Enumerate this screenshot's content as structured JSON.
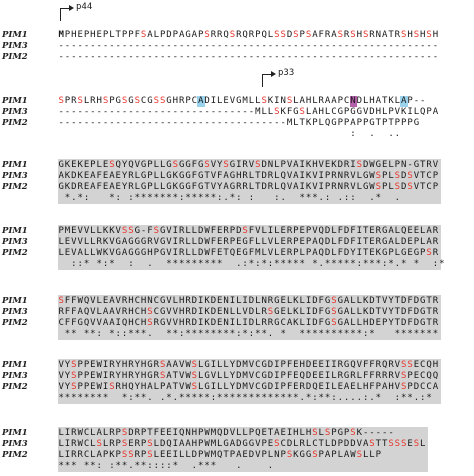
{
  "colors": {
    "red": "#e8352b",
    "blue": "#2e5cb8",
    "shade": "#d3d3d3",
    "hl_blue": "#79c4e6",
    "hl_purple": "#9b2b8f",
    "hl_green": "#2a7a3a",
    "hl_yellow": "#f2e94e",
    "hl_salmon": "#e0a090"
  },
  "markers": {
    "p44": "p44",
    "p33": "p33"
  },
  "blocks": [
    {
      "rows": [
        {
          "name": "PIM1",
          "seq": "MPHEPHEPLTPPFSALPDPAGAPSRRQSRQRPQLSSDSPSAFRASRSHSRNATRSHSHSH"
        },
        {
          "name": "PIM3",
          "seq": "------------------------------------------------------------"
        },
        {
          "name": "PIM2",
          "seq": "------------------------------------------------------------"
        }
      ],
      "cons": "",
      "shaded": false
    },
    {
      "rows": [
        {
          "name": "PIM1",
          "seq": "SPRSLRHSPGSGSCGSSGHRPCADILEVGMLLSKINSLAHLRAAPCNDLHATKLAP--"
        },
        {
          "name": "PIM3",
          "seq": "-------------------------------MLLSKFGSLAHLCGPGGVDHLPVKILQPA"
        },
        {
          "name": "PIM2",
          "seq": "------------------------------------MLTKPLQGPPAPPGTPTPPPG"
        }
      ],
      "cons": "                                              :  .  ..      ",
      "shaded": false
    },
    {
      "rows": [
        {
          "name": "PIM1",
          "seq": "GKEKEPLESQYQVGPLLGSGGFGSVYSGIRVSDNLPVAIKHVEKDRISDWGELPN-GTRV"
        },
        {
          "name": "PIM3",
          "seq": "AKDKEAFEAEYRLGPLLGKGGFGTVFAGHRLTDRLQVAIKVIPRNRVLGWSPLSDSVTCP"
        },
        {
          "name": "PIM2",
          "seq": "GKDREAFEAEYRLGPLLGKGGFGTVYAGRRLTDRLQVAIKVIPRNRVLGWSPLSDSVTCP"
        }
      ],
      "cons": " *.*:   *: :*******:*****:.*: :   :.  ***.: .::  .*  .     ",
      "shaded": true
    },
    {
      "rows": [
        {
          "name": "PIM1",
          "seq": "PMEVVLLKKVSSG-FSGVIRLLDWFERPDSFVLILERPEPVQDLFDFITERGALQEELAR"
        },
        {
          "name": "PIM3",
          "seq": "LEVVLLRKVGAGGGRVGVIRLLDWFERPEGFLLVLERPEPAQDLFDFITERGALDEPLAR"
        },
        {
          "name": "PIM2",
          "seq": "LEVALLWKVGAGGGHPGVIRLLDWFETQEGFMLVLERPLPAQDLFDYITEKGPLGEGPSR"
        }
      ],
      "cons": "  ::* *:*  :  .  *********  .:*:*:***** *.*****:***:*.* *  :*",
      "shaded": true
    },
    {
      "rows": [
        {
          "name": "PIM1",
          "seq": "SFFWQVLEAVRHCHNCGVLHRDIKDENILIDLNRGELKLIDFGSGALLKDTVYTDFDGTR"
        },
        {
          "name": "PIM3",
          "seq": "RFFAQVLAAVRHCHSCGVVHRDIKDENLLVDLRSGELKLIDFGSGALLKDTVYTDFDGTR"
        },
        {
          "name": "PIM2",
          "seq": "CFFGQVVAAIQHCHSRGVVHRDIKDENILIDLRRGCAKLIDFGSGALLHDEPYTDFDGTR"
        }
      ],
      "cons": " ** **: *::***.  **:********:*:**. *  **********:*   *******",
      "shaded": true
    },
    {
      "rows": [
        {
          "name": "PIM1",
          "seq": "VYSPPEWIRYHRYHGRSAAVWSLGILLYDMVCGDIPFEHDEEIIRGQVFFRQRVSSECQH"
        },
        {
          "name": "PIM3",
          "seq": "VYSPPEWIRYHRYHGRSATVWSLGVLLYDMVCGDIPFEQDEEILRGRLFFRRRVSPECQQ"
        },
        {
          "name": "PIM2",
          "seq": "VYSPPEWISRHQYHALPATVWSLGILLYDMVCGDIPFERDQEILEAELHFPAHVSPDCCA"
        }
      ],
      "cons": "********  *:**. .*.*****:*************.*:**:....:.*  :**.:*  ",
      "shaded": true
    },
    {
      "rows": [
        {
          "name": "PIM1",
          "seq": "LIRWCLALRPSDRPTFEEIQNHPWMQDVLLPQETAEIHLHSLSPGPSK-----"
        },
        {
          "name": "PIM3",
          "seq": "LIRWCLSLRPSERPSLDQIAAHPWMLGADGGVPESCDLRLCTLDPDDVASTTSSSESL"
        },
        {
          "name": "PIM2",
          "seq": "LIRRCLAPKPSSRPSLEEILLDPWMQTPAEDVPLNPSKGGSPAPLAWSLLP"
        }
      ],
      "cons": "*** **: :**.**::::*  .***   .    .",
      "shaded": true
    }
  ]
}
